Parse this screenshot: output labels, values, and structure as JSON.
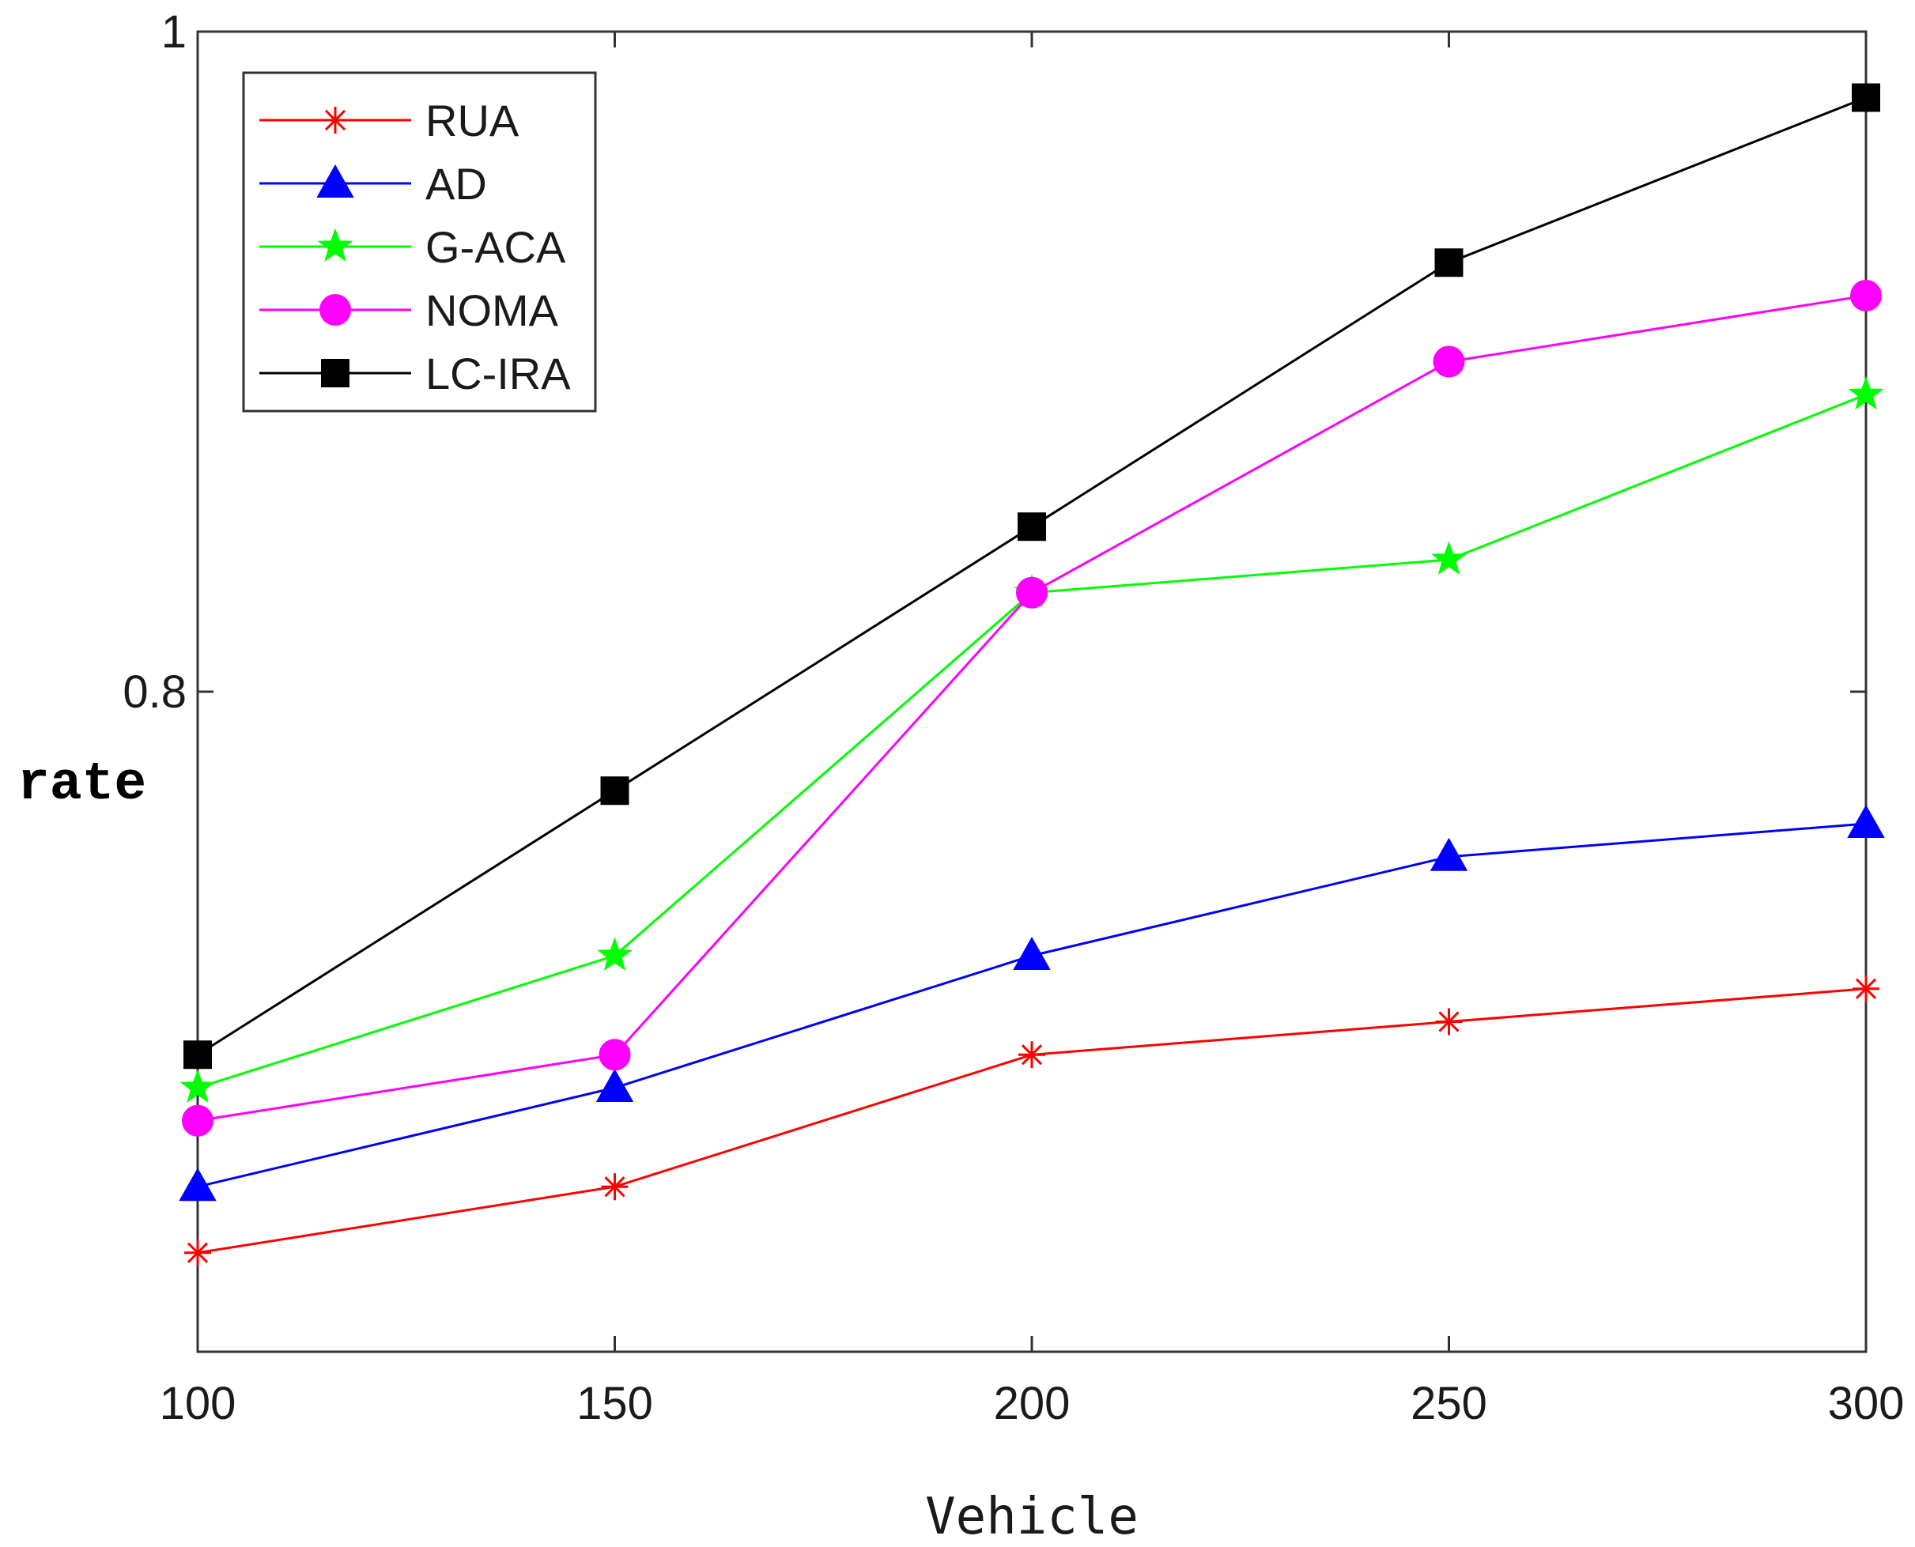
{
  "chart_data": {
    "type": "line",
    "title": "",
    "xlabel": "Vehicle",
    "ylabel": "rate",
    "categories": [
      100,
      150,
      200,
      250,
      300
    ],
    "xlim": [
      100,
      300
    ],
    "ylim": [
      0.6,
      1.0
    ],
    "xticks": [
      "100",
      "150",
      "200",
      "250",
      "300"
    ],
    "yticks": [
      {
        "value": 0.8,
        "label": "0.8"
      },
      {
        "value": 1.0,
        "label": "1"
      }
    ],
    "grid": false,
    "legend_position": "top-left",
    "series": [
      {
        "name": "RUA",
        "color": "#ff0000",
        "marker": "asterisk",
        "values": [
          0.63,
          0.65,
          0.69,
          0.7,
          0.71
        ]
      },
      {
        "name": "AD",
        "color": "#0000ff",
        "marker": "triangle",
        "values": [
          0.65,
          0.68,
          0.72,
          0.75,
          0.76
        ]
      },
      {
        "name": "G-ACA",
        "color": "#00ff00",
        "marker": "star",
        "values": [
          0.68,
          0.72,
          0.83,
          0.84,
          0.89
        ]
      },
      {
        "name": "NOMA",
        "color": "#ff00ff",
        "marker": "circle",
        "values": [
          0.67,
          0.69,
          0.83,
          0.9,
          0.92
        ]
      },
      {
        "name": "LC-IRA",
        "color": "#000000",
        "marker": "square",
        "values": [
          0.69,
          0.77,
          0.85,
          0.93,
          0.98
        ]
      }
    ]
  }
}
